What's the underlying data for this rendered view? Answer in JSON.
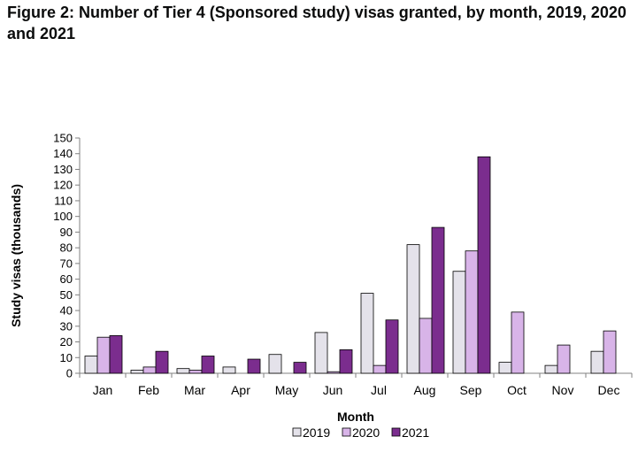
{
  "figure": {
    "title": "Figure 2: Number of Tier 4 (Sponsored study) visas granted, by month, 2019, 2020 and 2021"
  },
  "chart_data": {
    "type": "bar",
    "title": "Figure 2: Number of Tier 4 (Sponsored study) visas granted, by month, 2019, 2020 and 2021",
    "xlabel": "Month",
    "ylabel": "Study visas (thousands)",
    "ylim": [
      0,
      150
    ],
    "yticks": [
      0,
      10,
      20,
      30,
      40,
      50,
      60,
      70,
      80,
      90,
      100,
      110,
      120,
      130,
      140,
      150
    ],
    "categories": [
      "Jan",
      "Feb",
      "Mar",
      "Apr",
      "May",
      "Jun",
      "Jul",
      "Aug",
      "Sep",
      "Oct",
      "Nov",
      "Dec"
    ],
    "series": [
      {
        "name": "2019",
        "color": "#e4e2ea",
        "values": [
          11,
          2,
          3,
          4,
          12,
          26,
          51,
          82,
          65,
          7,
          5,
          14
        ]
      },
      {
        "name": "2020",
        "color": "#d8b4e8",
        "values": [
          23,
          4,
          2,
          null,
          null,
          1,
          5,
          35,
          78,
          39,
          18,
          27
        ]
      },
      {
        "name": "2021",
        "color": "#7b2d8e",
        "values": [
          24,
          14,
          11,
          9,
          7,
          15,
          34,
          93,
          138,
          null,
          null,
          null
        ]
      }
    ],
    "legend_position": "bottom",
    "grid": false
  }
}
